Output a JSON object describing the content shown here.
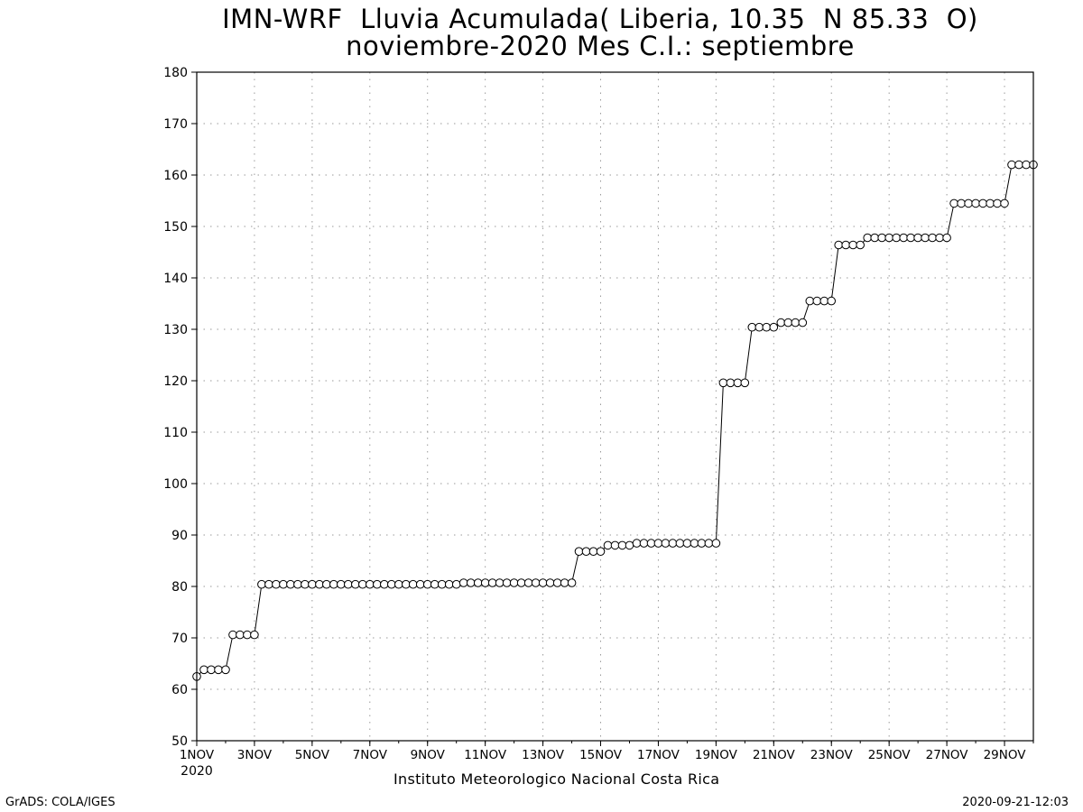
{
  "chart_data": {
    "type": "line",
    "title": "IMN-WRF  Lluvia Acumulada( Liberia, 10.35  N 85.33  O)",
    "subtitle": "noviembre-2020 Mes C.I.: septiembre",
    "xlabel": "",
    "ylabel": "",
    "ylim": [
      50,
      180
    ],
    "yticks": [
      "50",
      "60",
      "70",
      "80",
      "90",
      "100",
      "110",
      "120",
      "130",
      "140",
      "150",
      "160",
      "170",
      "180"
    ],
    "xlim": [
      1,
      30
    ],
    "xticks": [
      {
        "day": 1,
        "label": "1NOV",
        "sublabel": "2020"
      },
      {
        "day": 3,
        "label": "3NOV"
      },
      {
        "day": 5,
        "label": "5NOV"
      },
      {
        "day": 7,
        "label": "7NOV"
      },
      {
        "day": 9,
        "label": "9NOV"
      },
      {
        "day": 11,
        "label": "11NOV"
      },
      {
        "day": 13,
        "label": "13NOV"
      },
      {
        "day": 15,
        "label": "15NOV"
      },
      {
        "day": 17,
        "label": "17NOV"
      },
      {
        "day": 19,
        "label": "19NOV"
      },
      {
        "day": 21,
        "label": "21NOV"
      },
      {
        "day": 23,
        "label": "23NOV"
      },
      {
        "day": 25,
        "label": "25NOV"
      },
      {
        "day": 27,
        "label": "27NOV"
      },
      {
        "day": 29,
        "label": "29NOV"
      }
    ],
    "grid": true,
    "marker": "open-circle",
    "x_unit": "day of November 2020 (6-hourly)",
    "series": [
      {
        "values": [
          62.5,
          63.8,
          63.8,
          63.8,
          63.8,
          70.6,
          70.6,
          70.6,
          70.6,
          80.4,
          80.4,
          80.4,
          80.4,
          80.4,
          80.4,
          80.4,
          80.4,
          80.4,
          80.4,
          80.4,
          80.4,
          80.4,
          80.4,
          80.4,
          80.4,
          80.4,
          80.4,
          80.4,
          80.4,
          80.4,
          80.4,
          80.4,
          80.4,
          80.4,
          80.4,
          80.4,
          80.4,
          80.7,
          80.7,
          80.7,
          80.7,
          80.7,
          80.7,
          80.7,
          80.7,
          80.7,
          80.7,
          80.7,
          80.7,
          80.7,
          80.7,
          80.7,
          80.7,
          86.8,
          86.8,
          86.8,
          86.8,
          88.0,
          88.0,
          88.0,
          88.0,
          88.4,
          88.4,
          88.4,
          88.4,
          88.4,
          88.4,
          88.4,
          88.4,
          88.4,
          88.4,
          88.4,
          88.4,
          119.6,
          119.6,
          119.6,
          119.6,
          130.4,
          130.4,
          130.4,
          130.4,
          131.3,
          131.3,
          131.3,
          131.3,
          135.5,
          135.5,
          135.5,
          135.5,
          146.4,
          146.4,
          146.4,
          146.4,
          147.8,
          147.8,
          147.8,
          147.8,
          147.8,
          147.8,
          147.8,
          147.8,
          147.8,
          147.8,
          147.8,
          147.8,
          154.5,
          154.5,
          154.5,
          154.5,
          154.5,
          154.5,
          154.5,
          154.5,
          162.0,
          162.0,
          162.0,
          162.0
        ]
      }
    ]
  },
  "footer": {
    "institution": "Instituto Meteorologico Nacional Costa Rica",
    "credit": "GrADS: COLA/IGES",
    "timestamp": "2020-09-21-12:03"
  }
}
